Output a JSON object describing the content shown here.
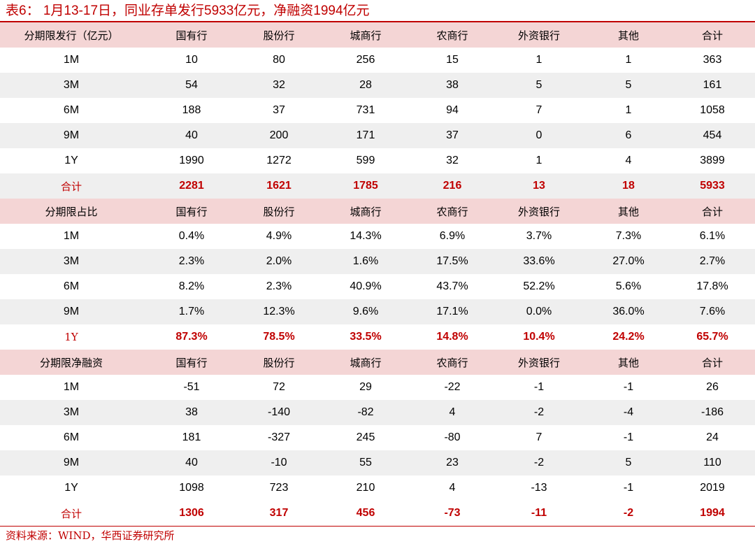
{
  "title": "表6： 1月13-17日，同业存单发行5933亿元，净融资1994亿元",
  "source": "资料来源：WIND，华西证券研究所",
  "colors": {
    "accent": "#c00000",
    "header_bg": "#f4d5d5",
    "stripe_bg": "#efefef"
  },
  "sections": [
    {
      "header": [
        "分期限发行（亿元）",
        "国有行",
        "股份行",
        "城商行",
        "农商行",
        "外资银行",
        "其他",
        "合计"
      ],
      "rows": [
        [
          "1M",
          "10",
          "80",
          "256",
          "15",
          "1",
          "1",
          "363"
        ],
        [
          "3M",
          "54",
          "32",
          "28",
          "38",
          "5",
          "5",
          "161"
        ],
        [
          "6M",
          "188",
          "37",
          "731",
          "94",
          "7",
          "1",
          "1058"
        ],
        [
          "9M",
          "40",
          "200",
          "171",
          "37",
          "0",
          "6",
          "454"
        ],
        [
          "1Y",
          "1990",
          "1272",
          "599",
          "32",
          "1",
          "4",
          "3899"
        ],
        [
          "合计",
          "2281",
          "1621",
          "1785",
          "216",
          "13",
          "18",
          "5933"
        ]
      ]
    },
    {
      "header": [
        "分期限占比",
        "国有行",
        "股份行",
        "城商行",
        "农商行",
        "外资银行",
        "其他",
        "合计"
      ],
      "rows": [
        [
          "1M",
          "0.4%",
          "4.9%",
          "14.3%",
          "6.9%",
          "3.7%",
          "7.3%",
          "6.1%"
        ],
        [
          "3M",
          "2.3%",
          "2.0%",
          "1.6%",
          "17.5%",
          "33.6%",
          "27.0%",
          "2.7%"
        ],
        [
          "6M",
          "8.2%",
          "2.3%",
          "40.9%",
          "43.7%",
          "52.2%",
          "5.6%",
          "17.8%"
        ],
        [
          "9M",
          "1.7%",
          "12.3%",
          "9.6%",
          "17.1%",
          "0.0%",
          "36.0%",
          "7.6%"
        ],
        [
          "1Y",
          "87.3%",
          "78.5%",
          "33.5%",
          "14.8%",
          "10.4%",
          "24.2%",
          "65.7%"
        ]
      ]
    },
    {
      "header": [
        "分期限净融资",
        "国有行",
        "股份行",
        "城商行",
        "农商行",
        "外资银行",
        "其他",
        "合计"
      ],
      "rows": [
        [
          "1M",
          "-51",
          "72",
          "29",
          "-22",
          "-1",
          "-1",
          "26"
        ],
        [
          "3M",
          "38",
          "-140",
          "-82",
          "4",
          "-2",
          "-4",
          "-186"
        ],
        [
          "6M",
          "181",
          "-327",
          "245",
          "-80",
          "7",
          "-1",
          "24"
        ],
        [
          "9M",
          "40",
          "-10",
          "55",
          "23",
          "-2",
          "5",
          "110"
        ],
        [
          "1Y",
          "1098",
          "723",
          "210",
          "4",
          "-13",
          "-1",
          "2019"
        ],
        [
          "合计",
          "1306",
          "317",
          "456",
          "-73",
          "-11",
          "-2",
          "1994"
        ]
      ]
    }
  ]
}
